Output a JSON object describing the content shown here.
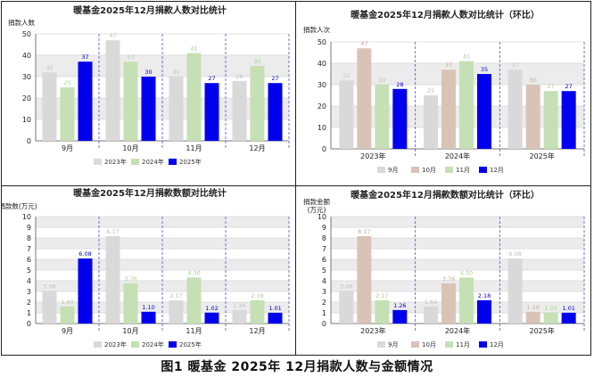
{
  "caption": "图1 暖基金 2025年 12月捐款人数与金额情况",
  "colors": {
    "c2023": "#d9d9d9",
    "c2024": "#c5e0b4",
    "c2025": "#0000ee",
    "c9m": "#d9d9d9",
    "c10m": "#d9c3b7",
    "c11m": "#c5e0b4",
    "c12m": "#0000ee",
    "band": "#ececec",
    "divider": "#4f4fd9"
  },
  "chart_data": [
    {
      "type": "bar",
      "title": "暖基金2025年12月捐款人数对比统计",
      "ylabel": "捐款人数",
      "ylim": [
        0,
        50
      ],
      "yticks": [
        0,
        10,
        20,
        30,
        40,
        50
      ],
      "categories": [
        "9月",
        "10月",
        "11月",
        "12月"
      ],
      "series": [
        {
          "name": "2023年",
          "color": "#d9d9d9",
          "labelColor": "#bfbfbf",
          "values": [
            32,
            47,
            30,
            28
          ],
          "labels": [
            "32",
            "47",
            "30",
            "28"
          ]
        },
        {
          "name": "2024年",
          "color": "#c5e0b4",
          "labelColor": "#a9d18e",
          "values": [
            25,
            37,
            41,
            35
          ],
          "labels": [
            "25",
            "37",
            "41",
            "35"
          ]
        },
        {
          "name": "2025年",
          "color": "#0000ee",
          "labelColor": "#0000cc",
          "values": [
            37,
            30,
            27,
            27
          ],
          "labels": [
            "37",
            "30",
            "27",
            "27"
          ]
        }
      ]
    },
    {
      "type": "bar",
      "title": "暖基金2025年12月捐款人数对比统计（环比）",
      "ylabel": "捐款人次",
      "ylim": [
        0,
        50
      ],
      "yticks": [
        0,
        10,
        20,
        30,
        40,
        50
      ],
      "categories": [
        "2023年",
        "2024年",
        "2025年"
      ],
      "series": [
        {
          "name": "9月",
          "color": "#d9d9d9",
          "labelColor": "#bfbfbf",
          "values": [
            32,
            25,
            37
          ],
          "labels": [
            "32",
            "25",
            "37"
          ]
        },
        {
          "name": "10月",
          "color": "#d9c3b7",
          "labelColor": "#c9a999",
          "values": [
            47,
            37,
            30
          ],
          "labels": [
            "47",
            "37",
            "30"
          ]
        },
        {
          "name": "11月",
          "color": "#c5e0b4",
          "labelColor": "#a9d18e",
          "values": [
            30,
            41,
            27
          ],
          "labels": [
            "30",
            "41",
            "27"
          ]
        },
        {
          "name": "12月",
          "color": "#0000ee",
          "labelColor": "#0000cc",
          "values": [
            28,
            35,
            27
          ],
          "labels": [
            "28",
            "35",
            "27"
          ]
        }
      ]
    },
    {
      "type": "bar",
      "title": "暖基金2025年12月捐款数额对比统计",
      "ylabel": "捐款数(万元)",
      "ylim": [
        0,
        10
      ],
      "yticks": [
        0,
        1,
        2,
        3,
        4,
        5,
        6,
        7,
        8,
        9,
        10
      ],
      "categories": [
        "9月",
        "10月",
        "11月",
        "12月"
      ],
      "series": [
        {
          "name": "2023年",
          "color": "#d9d9d9",
          "labelColor": "#bfbfbf",
          "values": [
            3.06,
            8.17,
            2.17,
            1.26
          ],
          "labels": [
            "3.06",
            "8.17",
            "2.17",
            "1.26"
          ]
        },
        {
          "name": "2024年",
          "color": "#c5e0b4",
          "labelColor": "#a9d18e",
          "values": [
            1.6,
            3.76,
            4.3,
            2.18
          ],
          "labels": [
            "1.60",
            "3.76",
            "4.30",
            "2.18"
          ]
        },
        {
          "name": "2025年",
          "color": "#0000ee",
          "labelColor": "#0000cc",
          "values": [
            6.08,
            1.1,
            1.02,
            1.01
          ],
          "labels": [
            "6.08",
            "1.10",
            "1.02",
            "1.01"
          ]
        }
      ]
    },
    {
      "type": "bar",
      "title": "暖基金2025年12月捐款数额对比统计（环比）",
      "ylabel": "捐款金额\n(万元)",
      "ylim": [
        0,
        10
      ],
      "yticks": [
        0,
        1,
        2,
        3,
        4,
        5,
        6,
        7,
        8,
        9,
        10
      ],
      "categories": [
        "2023年",
        "2024年",
        "2025年"
      ],
      "series": [
        {
          "name": "9月",
          "color": "#d9d9d9",
          "labelColor": "#bfbfbf",
          "values": [
            3.06,
            1.6,
            6.08
          ],
          "labels": [
            "3.06",
            "1.60",
            "6.08"
          ]
        },
        {
          "name": "10月",
          "color": "#d9c3b7",
          "labelColor": "#c9a999",
          "values": [
            8.17,
            3.76,
            1.1
          ],
          "labels": [
            "8.17",
            "3.76",
            "1.10"
          ]
        },
        {
          "name": "11月",
          "color": "#c5e0b4",
          "labelColor": "#a9d18e",
          "values": [
            2.17,
            4.3,
            1.02
          ],
          "labels": [
            "2.17",
            "4.30",
            "1.02"
          ]
        },
        {
          "name": "12月",
          "color": "#0000ee",
          "labelColor": "#0000cc",
          "values": [
            1.26,
            2.18,
            1.01
          ],
          "labels": [
            "1.26",
            "2.18",
            "1.01"
          ]
        }
      ]
    }
  ]
}
